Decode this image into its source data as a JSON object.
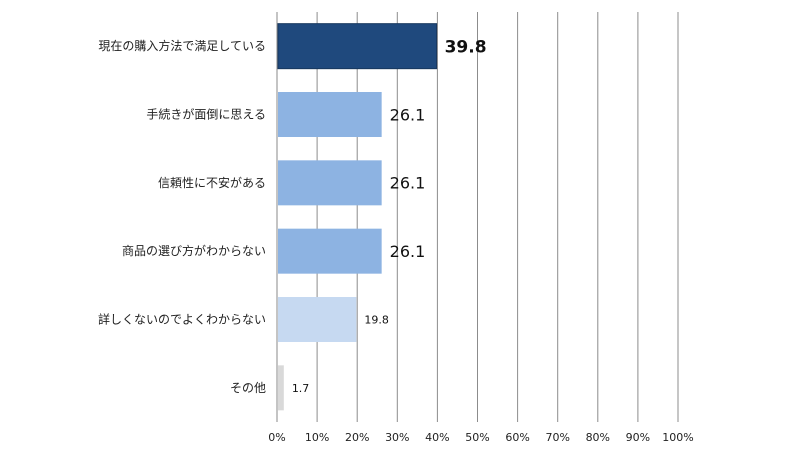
{
  "chart_data": {
    "type": "bar",
    "orientation": "horizontal",
    "categories": [
      "現在の購入方法で満足している",
      "手続きが面倒に思える",
      "信頼性に不安がある",
      "商品の選び方がわからない",
      "詳しくないのでよくわからない",
      "その他"
    ],
    "values": [
      39.8,
      26.1,
      26.1,
      26.1,
      19.8,
      1.7
    ],
    "bar_colors": [
      "#1f497d",
      "#8db3e2",
      "#8db3e2",
      "#8db3e2",
      "#c6d9f1",
      "#d9d9d9"
    ],
    "xlim": [
      0,
      100
    ],
    "x_ticks": [
      "0%",
      "10%",
      "20%",
      "30%",
      "40%",
      "50%",
      "60%",
      "70%",
      "80%",
      "90%",
      "100%"
    ],
    "grid": true,
    "legend": "none"
  }
}
